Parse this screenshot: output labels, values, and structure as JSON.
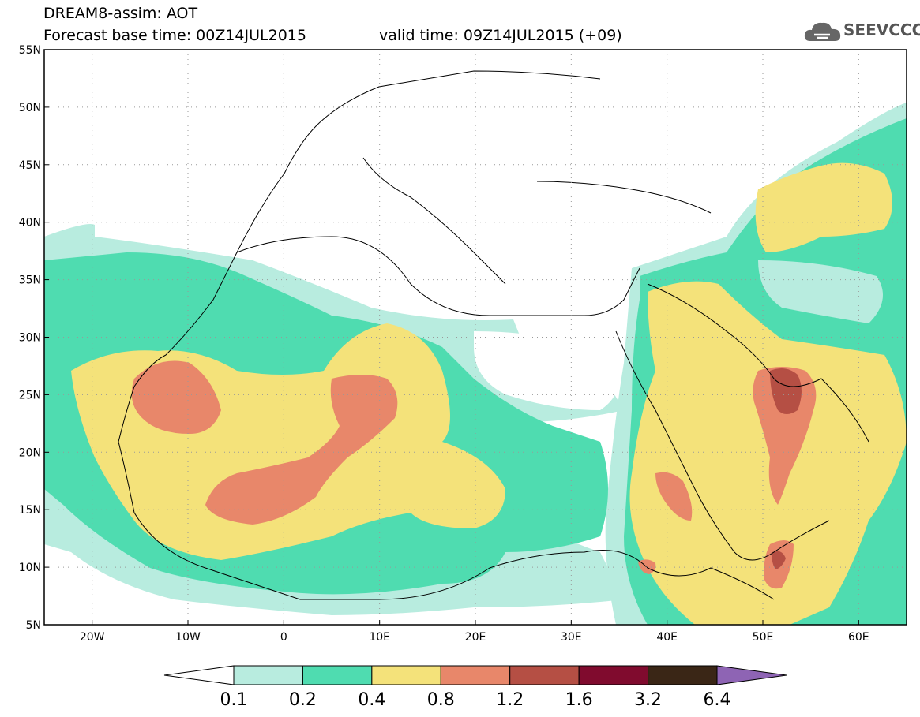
{
  "header": {
    "line1": "DREAM8-assim: AOT",
    "line2": "Forecast base time: 00Z14JUL2015",
    "valid": "valid time: 09Z14JUL2015 (+09)"
  },
  "logo": {
    "text": "SEEVCCC",
    "icon": "cloud-icon"
  },
  "map": {
    "lon_range": [
      -25,
      65
    ],
    "lat_range": [
      5,
      55
    ],
    "lat_labels": [
      "55N",
      "50N",
      "45N",
      "40N",
      "35N",
      "30N",
      "25N",
      "20N",
      "15N",
      "10N",
      "5N"
    ],
    "lon_labels": [
      "20W",
      "10W",
      "0",
      "10E",
      "20E",
      "30E",
      "40E",
      "50E",
      "60E"
    ],
    "grid": "dotted"
  },
  "colorbar": {
    "labels": [
      "0.1",
      "0.2",
      "0.4",
      "0.8",
      "1.2",
      "1.6",
      "3.2",
      "6.4"
    ],
    "colors": [
      "#b8ecdf",
      "#4fdcb0",
      "#f4e27a",
      "#e8876a",
      "#b54f44",
      "#800b2e",
      "#3a2616",
      "#8e64b4"
    ]
  }
}
